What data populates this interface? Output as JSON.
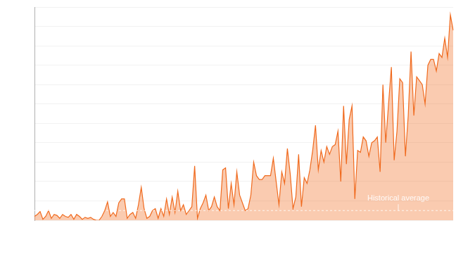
{
  "chart_data": {
    "type": "area",
    "categories": [
      null,
      null,
      null,
      null,
      null,
      null,
      null,
      null,
      null,
      null,
      null,
      null,
      null,
      null,
      null,
      null,
      null,
      null,
      null,
      null,
      null,
      null,
      null,
      null,
      null,
      null,
      null,
      null,
      null,
      null,
      null,
      null,
      null,
      null,
      null,
      null,
      null,
      null,
      null,
      null,
      null,
      null,
      null,
      null,
      null,
      null,
      null,
      null,
      null,
      null,
      null,
      null,
      null,
      null,
      null,
      null,
      null,
      null,
      null,
      null,
      null,
      null,
      null,
      null,
      null,
      null,
      null,
      null,
      null,
      null,
      null,
      null,
      null,
      null,
      null,
      null,
      null,
      null,
      null,
      null,
      null,
      null,
      null,
      null,
      null,
      null,
      null,
      null,
      null,
      null,
      null,
      null,
      null,
      null,
      null,
      null,
      null,
      null,
      null,
      null,
      null,
      null,
      null,
      null,
      null,
      null,
      null,
      null,
      null,
      null,
      null,
      null,
      null,
      null,
      null,
      null,
      null,
      null,
      null,
      null,
      null,
      null,
      null,
      null,
      null,
      null,
      null,
      null,
      null,
      null,
      null,
      null,
      null,
      null,
      null,
      null,
      null,
      null,
      null,
      null,
      null,
      null,
      null,
      null,
      null,
      null,
      null,
      null,
      null,
      null
    ],
    "values": [
      2,
      3,
      4.5,
      0.5,
      2,
      5,
      1,
      3,
      2.5,
      1,
      3,
      2,
      1.5,
      3,
      0.5,
      3,
      2,
      0.5,
      1.5,
      1,
      1.5,
      0.5,
      0,
      0,
      2,
      5,
      9.5,
      2,
      4,
      2,
      9,
      11,
      11,
      1,
      3,
      4,
      1,
      8,
      17,
      6,
      1,
      2,
      5,
      6,
      1,
      6,
      2,
      11,
      3,
      12,
      4,
      15,
      5,
      8,
      3,
      5,
      7,
      28,
      1,
      6,
      9,
      13,
      5,
      7,
      12,
      7,
      5,
      26,
      27,
      6,
      19,
      8,
      25,
      13,
      9,
      5,
      6,
      13,
      30,
      23,
      21,
      21,
      23,
      23,
      23,
      32,
      20,
      8,
      25,
      19,
      37,
      24,
      6,
      12,
      34,
      7,
      22,
      19,
      26,
      36,
      49,
      26,
      36,
      30,
      38,
      34,
      38,
      39,
      46,
      20,
      59,
      29,
      52,
      59,
      11,
      36,
      35,
      43,
      41,
      33,
      40,
      41,
      43,
      25,
      70,
      40,
      60,
      79,
      31,
      46,
      73,
      71,
      33,
      54,
      87,
      54,
      74,
      72,
      70,
      60,
      80,
      83,
      83,
      77,
      86,
      84,
      94,
      84,
      106,
      98
    ],
    "color": "#f06a1e",
    "ylim": [
      0,
      110
    ],
    "yticks": [
      0,
      10,
      20,
      30,
      40,
      50,
      60,
      70,
      80,
      90,
      100,
      110
    ],
    "grid": true,
    "tick_labels": false,
    "annotations": [
      {
        "label": "Historical average",
        "y": 5,
        "line_style": "dashed"
      }
    ]
  }
}
